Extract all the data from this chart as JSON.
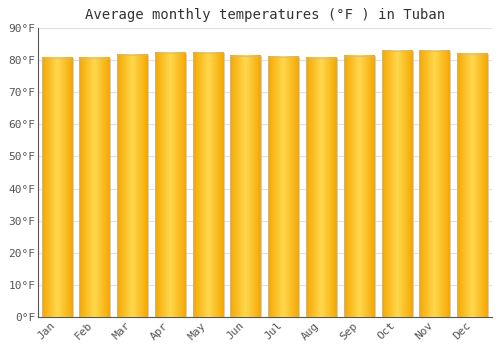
{
  "title": "Average monthly temperatures (°F ) in Tuban",
  "months": [
    "Jan",
    "Feb",
    "Mar",
    "Apr",
    "May",
    "Jun",
    "Jul",
    "Aug",
    "Sep",
    "Oct",
    "Nov",
    "Dec"
  ],
  "values": [
    80.6,
    80.6,
    81.5,
    82.0,
    82.2,
    81.3,
    80.8,
    80.6,
    81.3,
    82.6,
    82.8,
    81.7
  ],
  "bar_color_center": "#FFD84D",
  "bar_color_edge": "#F5A700",
  "bar_edge_color": "#cccccc",
  "background_color": "#ffffff",
  "plot_bg_color": "#ffffff",
  "ylim": [
    0,
    90
  ],
  "yticks": [
    0,
    10,
    20,
    30,
    40,
    50,
    60,
    70,
    80,
    90
  ],
  "ytick_labels": [
    "0°F",
    "10°F",
    "20°F",
    "30°F",
    "40°F",
    "50°F",
    "60°F",
    "70°F",
    "80°F",
    "90°F"
  ],
  "title_fontsize": 10,
  "tick_fontsize": 8,
  "grid_color": "#e0e0e0",
  "font_family": "monospace"
}
